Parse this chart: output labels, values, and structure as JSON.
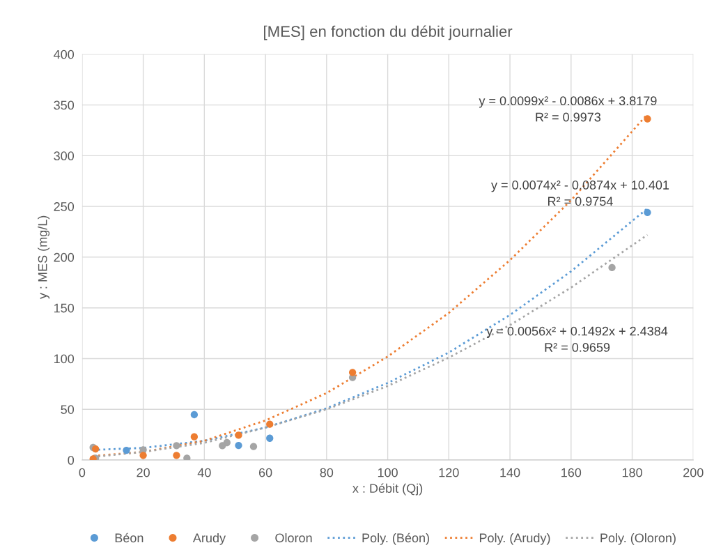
{
  "chart_data": {
    "type": "scatter",
    "title": "[MES] en fonction du débit journalier",
    "xlabel": "x : Débit (Qj)",
    "ylabel": "y : MES (mg/L)",
    "xlim": [
      0,
      200
    ],
    "ylim": [
      0,
      400
    ],
    "xticks": [
      0,
      20,
      40,
      60,
      80,
      100,
      120,
      140,
      160,
      180,
      200
    ],
    "yticks": [
      0,
      50,
      100,
      150,
      200,
      250,
      300,
      350,
      400
    ],
    "grid": true,
    "legend": "bottom",
    "marker": "circle",
    "series": [
      {
        "name": "Béon",
        "color": "#5b9bd5",
        "x": [
          14.5,
          36.7,
          51.2,
          61.4,
          185
        ],
        "values": [
          9.6,
          44.7,
          14.4,
          21.5,
          244
        ]
      },
      {
        "name": "Arudy",
        "color": "#ed7d31",
        "x": [
          3.6,
          4.4,
          20,
          30.9,
          36.7,
          51.2,
          61.4,
          88.5,
          185
        ],
        "values": [
          1.2,
          11,
          4.6,
          4.6,
          22.9,
          24.5,
          35.3,
          86.4,
          336.3
        ]
      },
      {
        "name": "Oloron",
        "color": "#a5a5a5",
        "x": [
          3.6,
          4.4,
          20,
          30.9,
          34.3,
          45.9,
          47.4,
          56.1,
          88.5,
          173.4
        ],
        "values": [
          12.4,
          1.8,
          10.1,
          14.2,
          1.8,
          14.2,
          17.2,
          13.3,
          81.3,
          189.7
        ]
      },
      {
        "name": "Poly. (Béon)",
        "type": "line",
        "line_style": "dotted",
        "marker": "none",
        "color": "#5b9bd5",
        "x": [
          3.6,
          20,
          40,
          60,
          80,
          100,
          120,
          140,
          160,
          185
        ],
        "values": [
          10,
          12,
          19,
          32,
          51,
          76,
          106,
          143,
          186,
          248
        ]
      },
      {
        "name": "Poly. (Arudy)",
        "type": "line",
        "line_style": "dotted",
        "marker": "none",
        "color": "#ed7d31",
        "x": [
          3.6,
          20,
          40,
          60,
          80,
          100,
          120,
          140,
          160,
          185
        ],
        "values": [
          4,
          8,
          19,
          39,
          66,
          102,
          145,
          197,
          256,
          341
        ]
      },
      {
        "name": "Poly. (Oloron)",
        "type": "line",
        "line_style": "dotted",
        "marker": "none",
        "color": "#a5a5a5",
        "x": [
          3.6,
          20,
          40,
          60,
          80,
          100,
          120,
          140,
          160,
          185
        ],
        "values": [
          3,
          8,
          17,
          32,
          50,
          73,
          101,
          133,
          170,
          222
        ]
      }
    ],
    "annotations": [
      "y = 0.0099x² - 0.0086x + 3.8179\nR² = 0.9973",
      "y = 0.0074x² - 0.0874x + 10.401\nR² = 0.9754",
      "y = 0.0056x² + 0.1492x + 2.4384\nR² = 0.9659"
    ]
  }
}
